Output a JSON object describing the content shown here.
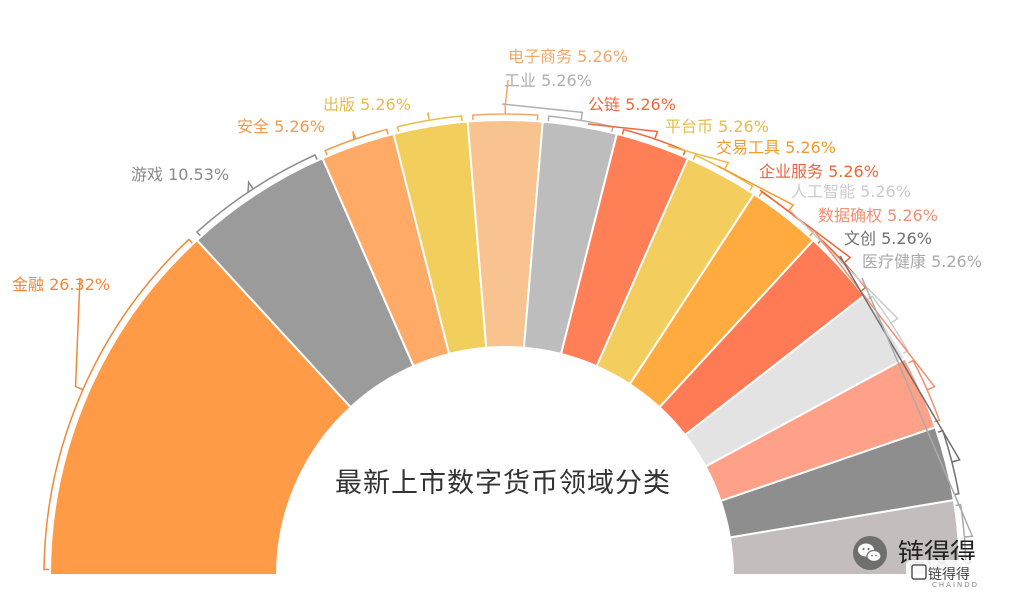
{
  "chart_data": {
    "type": "pie",
    "variant": "half-donut",
    "title": "最新上市数字货币领域分类",
    "slices": [
      {
        "label": "金融",
        "percent_text": "26.32%",
        "value": 26.32,
        "color": "#FF9A47"
      },
      {
        "label": "游戏",
        "percent_text": "10.53%",
        "value": 10.53,
        "color": "#9B9B9B"
      },
      {
        "label": "安全",
        "percent_text": "5.26%",
        "value": 5.26,
        "color": "#FFAA66"
      },
      {
        "label": "出版",
        "percent_text": "5.26%",
        "value": 5.26,
        "color": "#F2CE5C"
      },
      {
        "label": "电子商务",
        "percent_text": "5.26%",
        "value": 5.26,
        "color": "#F8C38F"
      },
      {
        "label": "工业",
        "percent_text": "5.26%",
        "value": 5.26,
        "color": "#BDBDBD"
      },
      {
        "label": "公链",
        "percent_text": "5.26%",
        "value": 5.26,
        "color": "#FF7F56"
      },
      {
        "label": "平台币",
        "percent_text": "5.26%",
        "value": 5.26,
        "color": "#F3CE5E"
      },
      {
        "label": "交易工具",
        "percent_text": "5.26%",
        "value": 5.26,
        "color": "#FFAB40"
      },
      {
        "label": "企业服务",
        "percent_text": "5.26%",
        "value": 5.26,
        "color": "#FF7B55"
      },
      {
        "label": "人工智能",
        "percent_text": "5.26%",
        "value": 5.26,
        "color": "#E3E3E3"
      },
      {
        "label": "数据确权",
        "percent_text": "5.26%",
        "value": 5.26,
        "color": "#FFA188"
      },
      {
        "label": "文创",
        "percent_text": "5.26%",
        "value": 5.26,
        "color": "#8E8E8E"
      },
      {
        "label": "医疗健康",
        "percent_text": "5.26%",
        "value": 5.26,
        "color": "#C3BEBD"
      }
    ],
    "label_colors": [
      "#F0883A",
      "#8A8A8A",
      "#F29A4A",
      "#E8BC48",
      "#F2A86A",
      "#AFAFAF",
      "#F2683C",
      "#E8BC48",
      "#F29A2E",
      "#F0643A",
      "#CCCCCC",
      "#F58E72",
      "#707070",
      "#AAAAAA"
    ]
  },
  "watermark": {
    "icon": "wechat-icon",
    "text": "链得得",
    "logo_text": "链得得",
    "sub_text": "CHAINDD"
  }
}
